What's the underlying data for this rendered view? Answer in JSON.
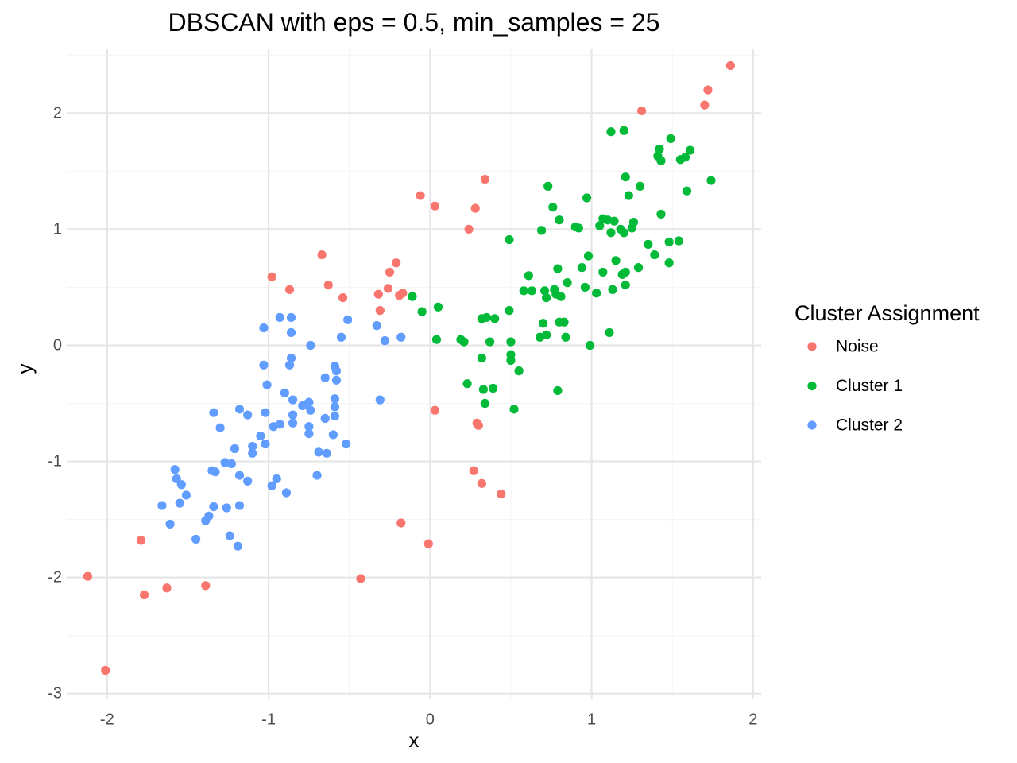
{
  "chart_data": {
    "type": "scatter",
    "title": "DBSCAN with eps = 0.5, min_samples = 25",
    "xlabel": "x",
    "ylabel": "y",
    "xlim": [
      -2.25,
      2.05
    ],
    "ylim": [
      -3.05,
      2.55
    ],
    "x_ticks": [
      -2,
      -1,
      0,
      1,
      2
    ],
    "y_ticks": [
      -3,
      -2,
      -1,
      0,
      1,
      2
    ],
    "x_tick_labels": [
      "-2",
      "-1",
      "0",
      "1",
      "2"
    ],
    "y_tick_labels": [
      "-3",
      "-2",
      "-1",
      "0",
      "1",
      "2"
    ],
    "grid": true,
    "legend": {
      "title": "Cluster Assignment",
      "placement": "right",
      "entries": [
        "Noise",
        "Cluster 1",
        "Cluster 2"
      ]
    },
    "colors": {
      "Noise": "#f8766d",
      "Cluster 1": "#00ba38",
      "Cluster 2": "#619cff"
    },
    "series": [
      {
        "name": "Noise",
        "points": [
          [
            -2.12,
            -1.99
          ],
          [
            -2.01,
            -2.8
          ],
          [
            -1.79,
            -1.68
          ],
          [
            -1.77,
            -2.15
          ],
          [
            -1.63,
            -2.09
          ],
          [
            -1.39,
            -2.07
          ],
          [
            -0.98,
            0.59
          ],
          [
            -0.87,
            0.48
          ],
          [
            -0.67,
            0.78
          ],
          [
            -0.63,
            0.52
          ],
          [
            -0.54,
            0.41
          ],
          [
            -0.43,
            -2.01
          ],
          [
            -0.32,
            0.44
          ],
          [
            -0.31,
            0.3
          ],
          [
            -0.26,
            0.49
          ],
          [
            -0.25,
            0.63
          ],
          [
            -0.21,
            0.71
          ],
          [
            -0.19,
            0.43
          ],
          [
            -0.17,
            0.45
          ],
          [
            -0.18,
            -1.53
          ],
          [
            -0.06,
            1.29
          ],
          [
            -0.01,
            -1.71
          ],
          [
            0.03,
            1.2
          ],
          [
            0.03,
            -0.56
          ],
          [
            0.24,
            1.0
          ],
          [
            0.27,
            -1.08
          ],
          [
            0.28,
            1.18
          ],
          [
            0.29,
            -0.67
          ],
          [
            0.3,
            -0.69
          ],
          [
            0.32,
            -1.19
          ],
          [
            0.34,
            1.43
          ],
          [
            0.44,
            -1.28
          ],
          [
            1.31,
            2.02
          ],
          [
            1.7,
            2.07
          ],
          [
            1.72,
            2.2
          ],
          [
            1.86,
            2.41
          ]
        ]
      },
      {
        "name": "Cluster 1",
        "points": [
          [
            -0.11,
            0.42
          ],
          [
            -0.05,
            0.29
          ],
          [
            0.04,
            0.05
          ],
          [
            0.05,
            0.33
          ],
          [
            0.19,
            0.05
          ],
          [
            0.21,
            0.03
          ],
          [
            0.23,
            -0.33
          ],
          [
            0.32,
            0.23
          ],
          [
            0.32,
            -0.11
          ],
          [
            0.33,
            -0.38
          ],
          [
            0.34,
            -0.5
          ],
          [
            0.35,
            0.24
          ],
          [
            0.37,
            0.03
          ],
          [
            0.39,
            -0.37
          ],
          [
            0.4,
            0.23
          ],
          [
            0.49,
            0.91
          ],
          [
            0.49,
            0.3
          ],
          [
            0.5,
            0.03
          ],
          [
            0.5,
            -0.08
          ],
          [
            0.5,
            -0.13
          ],
          [
            0.52,
            -0.55
          ],
          [
            0.55,
            -0.22
          ],
          [
            0.58,
            0.47
          ],
          [
            0.61,
            0.6
          ],
          [
            0.63,
            0.47
          ],
          [
            0.68,
            0.07
          ],
          [
            0.69,
            0.99
          ],
          [
            0.7,
            0.19
          ],
          [
            0.71,
            0.47
          ],
          [
            0.72,
            0.41
          ],
          [
            0.72,
            0.09
          ],
          [
            0.73,
            1.37
          ],
          [
            0.76,
            1.19
          ],
          [
            0.77,
            0.48
          ],
          [
            0.78,
            0.44
          ],
          [
            0.79,
            0.66
          ],
          [
            0.79,
            -0.39
          ],
          [
            0.8,
            1.08
          ],
          [
            0.8,
            0.2
          ],
          [
            0.81,
            0.42
          ],
          [
            0.83,
            0.2
          ],
          [
            0.84,
            0.07
          ],
          [
            0.85,
            0.54
          ],
          [
            0.9,
            1.02
          ],
          [
            0.92,
            1.01
          ],
          [
            0.94,
            0.67
          ],
          [
            0.96,
            0.5
          ],
          [
            0.97,
            1.27
          ],
          [
            0.98,
            0.77
          ],
          [
            0.99,
            0.0
          ],
          [
            1.03,
            0.45
          ],
          [
            1.05,
            1.03
          ],
          [
            1.07,
            0.63
          ],
          [
            1.07,
            1.09
          ],
          [
            1.1,
            1.08
          ],
          [
            1.11,
            0.11
          ],
          [
            1.12,
            1.84
          ],
          [
            1.12,
            0.97
          ],
          [
            1.13,
            0.48
          ],
          [
            1.14,
            1.07
          ],
          [
            1.15,
            0.73
          ],
          [
            1.18,
            1.0
          ],
          [
            1.19,
            0.61
          ],
          [
            1.2,
            0.97
          ],
          [
            1.2,
            1.85
          ],
          [
            1.21,
            1.45
          ],
          [
            1.21,
            0.52
          ],
          [
            1.21,
            0.63
          ],
          [
            1.23,
            1.29
          ],
          [
            1.25,
            1.01
          ],
          [
            1.26,
            1.06
          ],
          [
            1.29,
            0.67
          ],
          [
            1.3,
            1.37
          ],
          [
            1.35,
            0.87
          ],
          [
            1.39,
            0.78
          ],
          [
            1.41,
            1.63
          ],
          [
            1.42,
            1.69
          ],
          [
            1.43,
            1.59
          ],
          [
            1.43,
            1.13
          ],
          [
            1.48,
            0.71
          ],
          [
            1.48,
            0.89
          ],
          [
            1.49,
            1.78
          ],
          [
            1.54,
            0.9
          ],
          [
            1.55,
            1.6
          ],
          [
            1.58,
            1.62
          ],
          [
            1.59,
            1.33
          ],
          [
            1.61,
            1.68
          ],
          [
            1.74,
            1.42
          ]
        ]
      },
      {
        "name": "Cluster 2",
        "points": [
          [
            -1.66,
            -1.38
          ],
          [
            -1.61,
            -1.54
          ],
          [
            -1.58,
            -1.07
          ],
          [
            -1.57,
            -1.15
          ],
          [
            -1.55,
            -1.36
          ],
          [
            -1.54,
            -1.2
          ],
          [
            -1.51,
            -1.29
          ],
          [
            -1.45,
            -1.67
          ],
          [
            -1.39,
            -1.51
          ],
          [
            -1.37,
            -1.47
          ],
          [
            -1.35,
            -1.08
          ],
          [
            -1.34,
            -0.58
          ],
          [
            -1.34,
            -1.39
          ],
          [
            -1.33,
            -1.09
          ],
          [
            -1.3,
            -0.71
          ],
          [
            -1.27,
            -1.01
          ],
          [
            -1.26,
            -1.4
          ],
          [
            -1.24,
            -1.64
          ],
          [
            -1.23,
            -1.02
          ],
          [
            -1.21,
            -0.89
          ],
          [
            -1.19,
            -1.73
          ],
          [
            -1.18,
            -1.12
          ],
          [
            -1.18,
            -0.55
          ],
          [
            -1.18,
            -1.38
          ],
          [
            -1.13,
            -1.17
          ],
          [
            -1.13,
            -0.6
          ],
          [
            -1.1,
            -0.87
          ],
          [
            -1.1,
            -0.93
          ],
          [
            -1.05,
            -0.78
          ],
          [
            -1.03,
            -0.17
          ],
          [
            -1.03,
            0.15
          ],
          [
            -1.02,
            -0.58
          ],
          [
            -1.02,
            -0.85
          ],
          [
            -1.01,
            -0.34
          ],
          [
            -0.98,
            -1.21
          ],
          [
            -0.97,
            -0.7
          ],
          [
            -0.95,
            -1.15
          ],
          [
            -0.93,
            0.24
          ],
          [
            -0.93,
            -0.68
          ],
          [
            -0.9,
            -0.41
          ],
          [
            -0.89,
            -1.27
          ],
          [
            -0.87,
            -0.17
          ],
          [
            -0.86,
            0.24
          ],
          [
            -0.86,
            -0.11
          ],
          [
            -0.86,
            0.11
          ],
          [
            -0.85,
            -0.47
          ],
          [
            -0.85,
            -0.6
          ],
          [
            -0.85,
            -0.67
          ],
          [
            -0.79,
            -0.52
          ],
          [
            -0.77,
            -0.51
          ],
          [
            -0.75,
            -0.49
          ],
          [
            -0.75,
            -0.7
          ],
          [
            -0.75,
            -0.76
          ],
          [
            -0.74,
            -0.56
          ],
          [
            -0.74,
            -0.0
          ],
          [
            -0.7,
            -1.12
          ],
          [
            -0.69,
            -0.92
          ],
          [
            -0.65,
            -0.28
          ],
          [
            -0.65,
            -0.63
          ],
          [
            -0.64,
            -0.93
          ],
          [
            -0.6,
            -0.77
          ],
          [
            -0.59,
            -0.18
          ],
          [
            -0.59,
            -0.61
          ],
          [
            -0.59,
            -0.46
          ],
          [
            -0.59,
            -0.53
          ],
          [
            -0.58,
            -0.3
          ],
          [
            -0.58,
            -0.22
          ],
          [
            -0.55,
            0.07
          ],
          [
            -0.52,
            -0.85
          ],
          [
            -0.51,
            0.22
          ],
          [
            -0.33,
            0.17
          ],
          [
            -0.31,
            -0.47
          ],
          [
            -0.28,
            0.04
          ],
          [
            -0.18,
            0.07
          ]
        ]
      }
    ]
  }
}
